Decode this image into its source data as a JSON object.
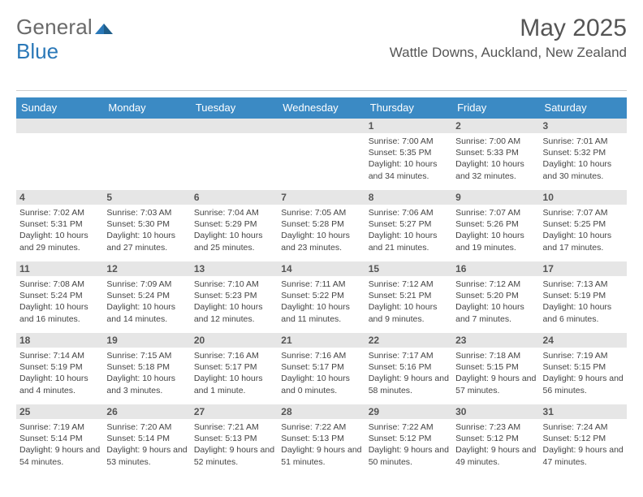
{
  "brand": {
    "general": "General",
    "blue": "Blue"
  },
  "title": "May 2025",
  "location": "Wattle Downs, Auckland, New Zealand",
  "colors": {
    "header_bg": "#3b8ac4",
    "header_text": "#ffffff",
    "datebar_bg": "#e6e6e6",
    "text": "#444444",
    "title_text": "#555555",
    "logo_gray": "#6a6a6a",
    "logo_blue": "#2a78b8",
    "divider": "#cfcfcf",
    "background": "#ffffff"
  },
  "typography": {
    "month_title_size": 30,
    "location_size": 17,
    "dayhead_size": 13,
    "date_size": 12,
    "info_size": 10.5,
    "logo_size": 26,
    "font_family": "Arial"
  },
  "layout": {
    "columns": 7,
    "rows": 5,
    "cell_min_height": 88
  },
  "day_names": [
    "Sunday",
    "Monday",
    "Tuesday",
    "Wednesday",
    "Thursday",
    "Friday",
    "Saturday"
  ],
  "weeks": [
    [
      null,
      null,
      null,
      null,
      {
        "date": "1",
        "sunrise": "Sunrise: 7:00 AM",
        "sunset": "Sunset: 5:35 PM",
        "daylight": "Daylight: 10 hours and 34 minutes."
      },
      {
        "date": "2",
        "sunrise": "Sunrise: 7:00 AM",
        "sunset": "Sunset: 5:33 PM",
        "daylight": "Daylight: 10 hours and 32 minutes."
      },
      {
        "date": "3",
        "sunrise": "Sunrise: 7:01 AM",
        "sunset": "Sunset: 5:32 PM",
        "daylight": "Daylight: 10 hours and 30 minutes."
      }
    ],
    [
      {
        "date": "4",
        "sunrise": "Sunrise: 7:02 AM",
        "sunset": "Sunset: 5:31 PM",
        "daylight": "Daylight: 10 hours and 29 minutes."
      },
      {
        "date": "5",
        "sunrise": "Sunrise: 7:03 AM",
        "sunset": "Sunset: 5:30 PM",
        "daylight": "Daylight: 10 hours and 27 minutes."
      },
      {
        "date": "6",
        "sunrise": "Sunrise: 7:04 AM",
        "sunset": "Sunset: 5:29 PM",
        "daylight": "Daylight: 10 hours and 25 minutes."
      },
      {
        "date": "7",
        "sunrise": "Sunrise: 7:05 AM",
        "sunset": "Sunset: 5:28 PM",
        "daylight": "Daylight: 10 hours and 23 minutes."
      },
      {
        "date": "8",
        "sunrise": "Sunrise: 7:06 AM",
        "sunset": "Sunset: 5:27 PM",
        "daylight": "Daylight: 10 hours and 21 minutes."
      },
      {
        "date": "9",
        "sunrise": "Sunrise: 7:07 AM",
        "sunset": "Sunset: 5:26 PM",
        "daylight": "Daylight: 10 hours and 19 minutes."
      },
      {
        "date": "10",
        "sunrise": "Sunrise: 7:07 AM",
        "sunset": "Sunset: 5:25 PM",
        "daylight": "Daylight: 10 hours and 17 minutes."
      }
    ],
    [
      {
        "date": "11",
        "sunrise": "Sunrise: 7:08 AM",
        "sunset": "Sunset: 5:24 PM",
        "daylight": "Daylight: 10 hours and 16 minutes."
      },
      {
        "date": "12",
        "sunrise": "Sunrise: 7:09 AM",
        "sunset": "Sunset: 5:24 PM",
        "daylight": "Daylight: 10 hours and 14 minutes."
      },
      {
        "date": "13",
        "sunrise": "Sunrise: 7:10 AM",
        "sunset": "Sunset: 5:23 PM",
        "daylight": "Daylight: 10 hours and 12 minutes."
      },
      {
        "date": "14",
        "sunrise": "Sunrise: 7:11 AM",
        "sunset": "Sunset: 5:22 PM",
        "daylight": "Daylight: 10 hours and 11 minutes."
      },
      {
        "date": "15",
        "sunrise": "Sunrise: 7:12 AM",
        "sunset": "Sunset: 5:21 PM",
        "daylight": "Daylight: 10 hours and 9 minutes."
      },
      {
        "date": "16",
        "sunrise": "Sunrise: 7:12 AM",
        "sunset": "Sunset: 5:20 PM",
        "daylight": "Daylight: 10 hours and 7 minutes."
      },
      {
        "date": "17",
        "sunrise": "Sunrise: 7:13 AM",
        "sunset": "Sunset: 5:19 PM",
        "daylight": "Daylight: 10 hours and 6 minutes."
      }
    ],
    [
      {
        "date": "18",
        "sunrise": "Sunrise: 7:14 AM",
        "sunset": "Sunset: 5:19 PM",
        "daylight": "Daylight: 10 hours and 4 minutes."
      },
      {
        "date": "19",
        "sunrise": "Sunrise: 7:15 AM",
        "sunset": "Sunset: 5:18 PM",
        "daylight": "Daylight: 10 hours and 3 minutes."
      },
      {
        "date": "20",
        "sunrise": "Sunrise: 7:16 AM",
        "sunset": "Sunset: 5:17 PM",
        "daylight": "Daylight: 10 hours and 1 minute."
      },
      {
        "date": "21",
        "sunrise": "Sunrise: 7:16 AM",
        "sunset": "Sunset: 5:17 PM",
        "daylight": "Daylight: 10 hours and 0 minutes."
      },
      {
        "date": "22",
        "sunrise": "Sunrise: 7:17 AM",
        "sunset": "Sunset: 5:16 PM",
        "daylight": "Daylight: 9 hours and 58 minutes."
      },
      {
        "date": "23",
        "sunrise": "Sunrise: 7:18 AM",
        "sunset": "Sunset: 5:15 PM",
        "daylight": "Daylight: 9 hours and 57 minutes."
      },
      {
        "date": "24",
        "sunrise": "Sunrise: 7:19 AM",
        "sunset": "Sunset: 5:15 PM",
        "daylight": "Daylight: 9 hours and 56 minutes."
      }
    ],
    [
      {
        "date": "25",
        "sunrise": "Sunrise: 7:19 AM",
        "sunset": "Sunset: 5:14 PM",
        "daylight": "Daylight: 9 hours and 54 minutes."
      },
      {
        "date": "26",
        "sunrise": "Sunrise: 7:20 AM",
        "sunset": "Sunset: 5:14 PM",
        "daylight": "Daylight: 9 hours and 53 minutes."
      },
      {
        "date": "27",
        "sunrise": "Sunrise: 7:21 AM",
        "sunset": "Sunset: 5:13 PM",
        "daylight": "Daylight: 9 hours and 52 minutes."
      },
      {
        "date": "28",
        "sunrise": "Sunrise: 7:22 AM",
        "sunset": "Sunset: 5:13 PM",
        "daylight": "Daylight: 9 hours and 51 minutes."
      },
      {
        "date": "29",
        "sunrise": "Sunrise: 7:22 AM",
        "sunset": "Sunset: 5:12 PM",
        "daylight": "Daylight: 9 hours and 50 minutes."
      },
      {
        "date": "30",
        "sunrise": "Sunrise: 7:23 AM",
        "sunset": "Sunset: 5:12 PM",
        "daylight": "Daylight: 9 hours and 49 minutes."
      },
      {
        "date": "31",
        "sunrise": "Sunrise: 7:24 AM",
        "sunset": "Sunset: 5:12 PM",
        "daylight": "Daylight: 9 hours and 47 minutes."
      }
    ]
  ]
}
